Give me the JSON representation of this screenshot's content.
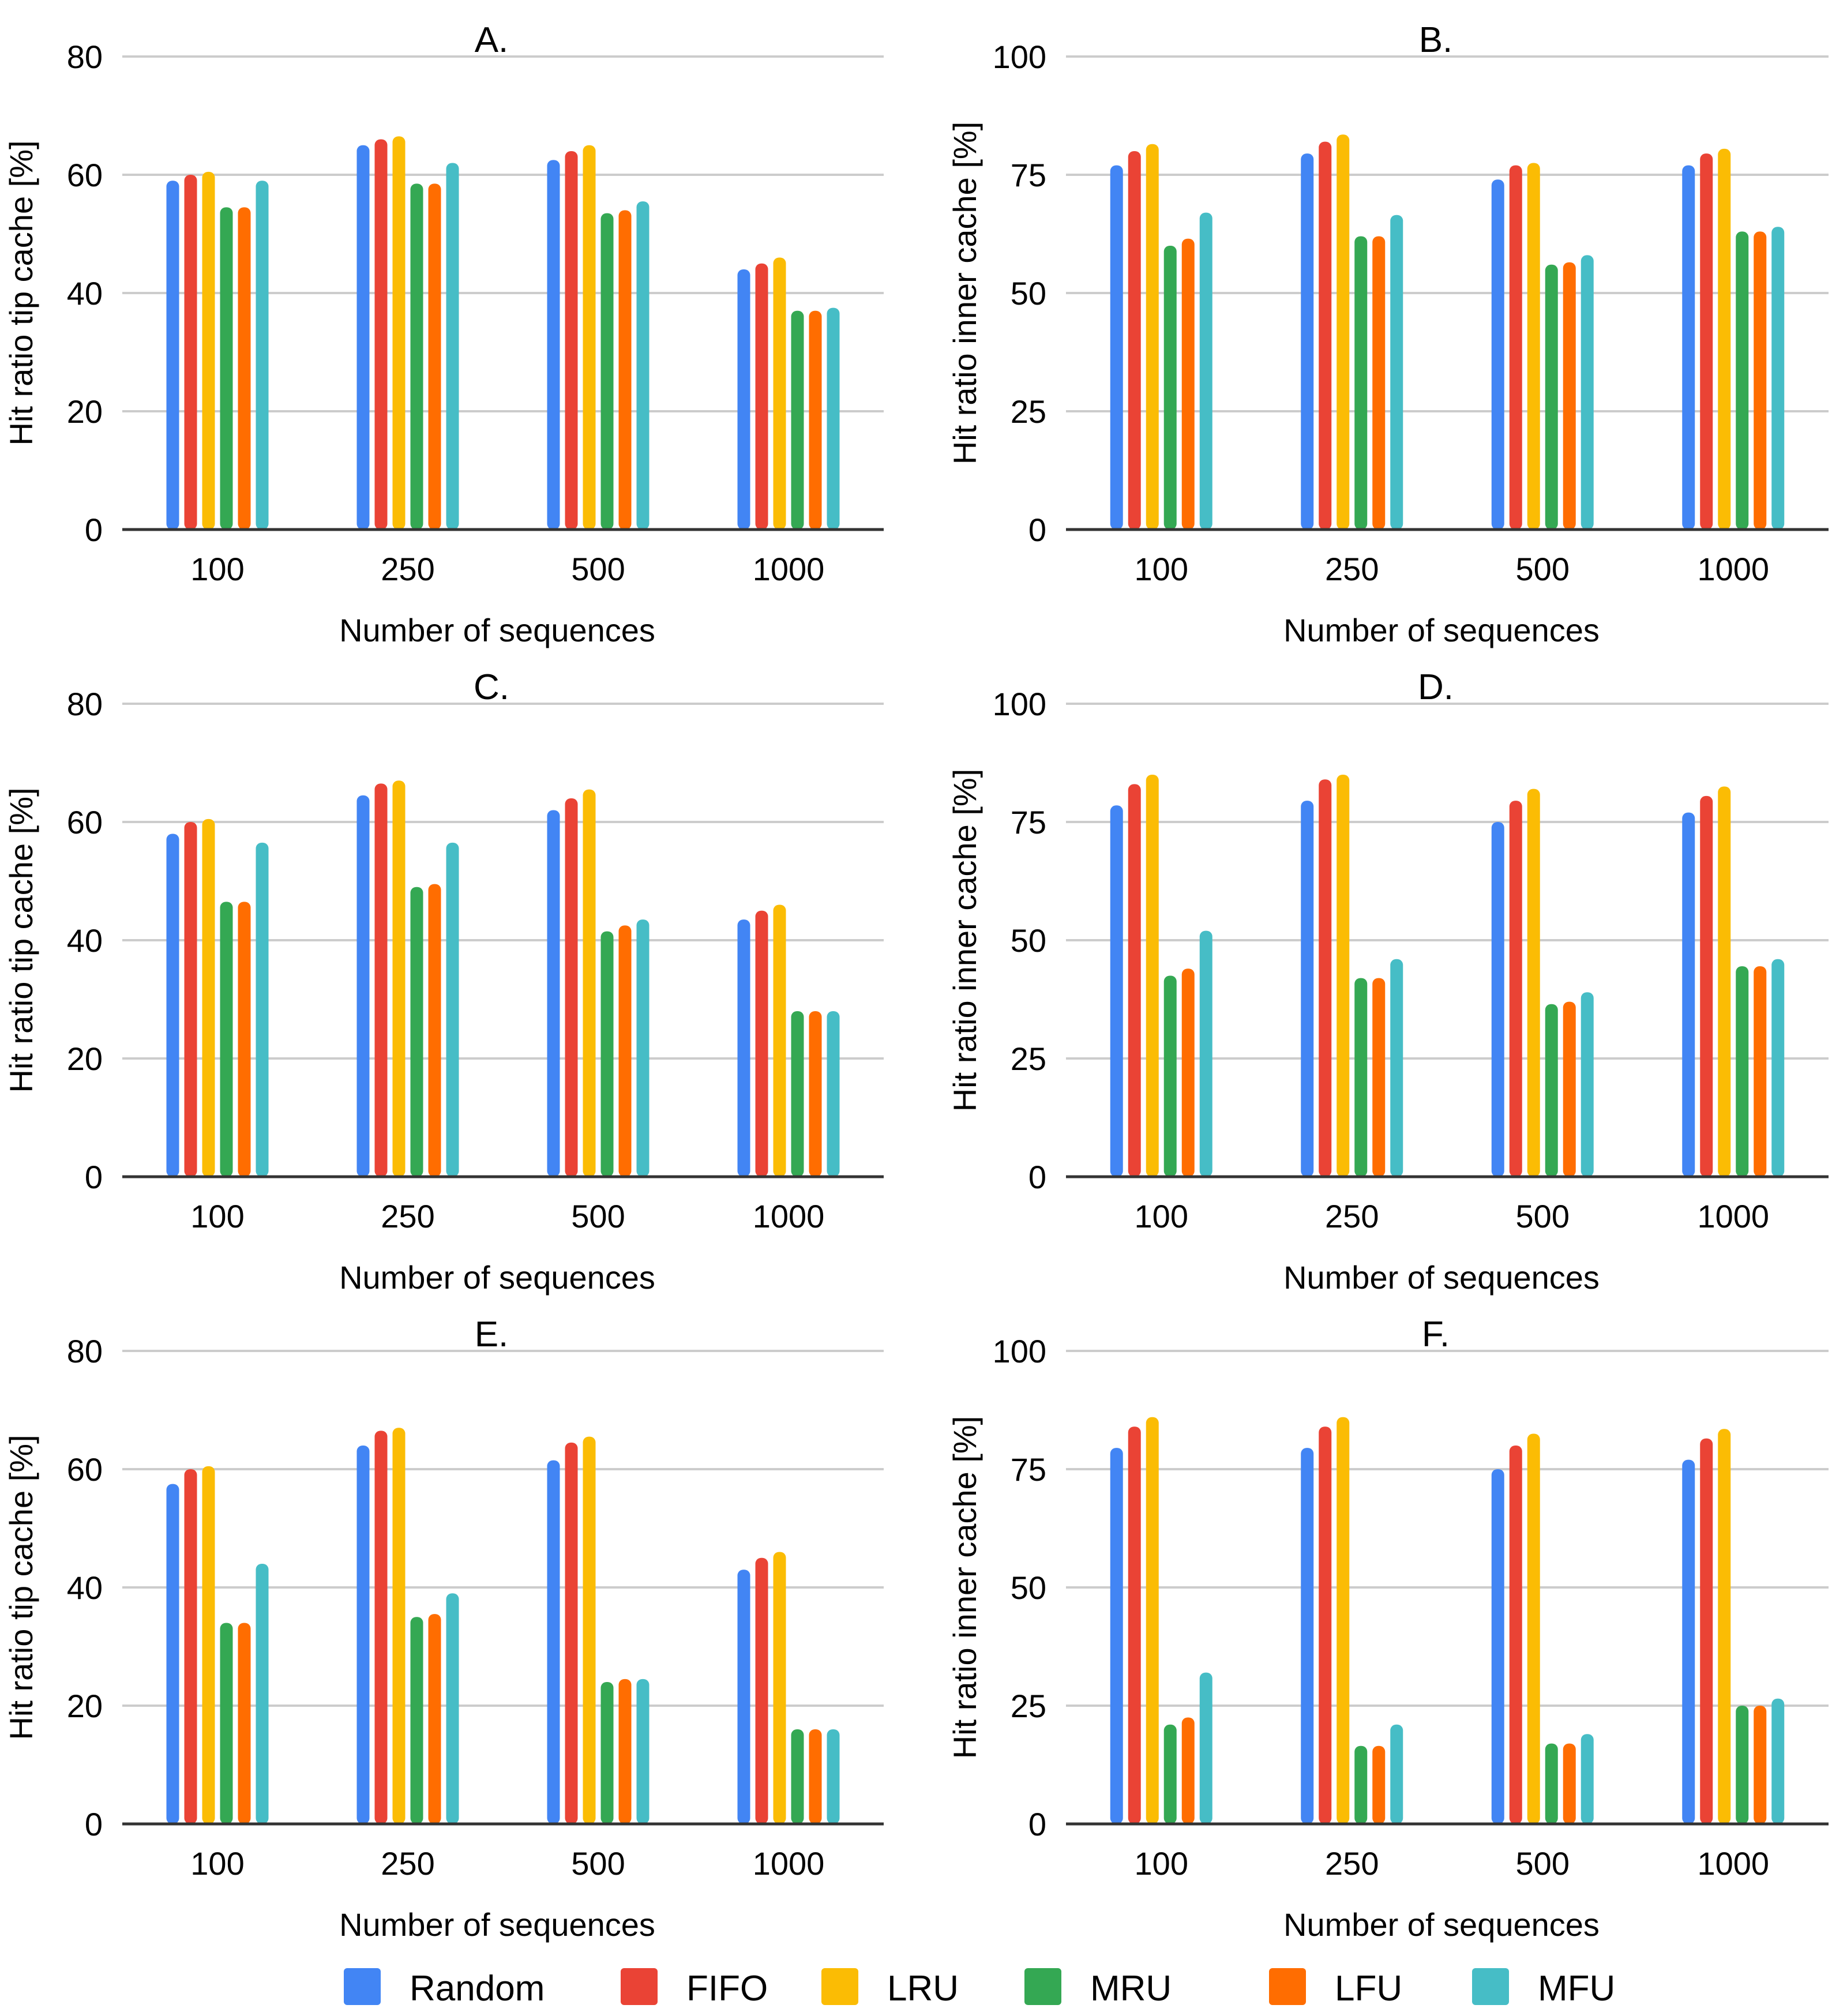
{
  "chart_data": {
    "type": "bar",
    "series_names": [
      "Random",
      "FIFO",
      "LRU",
      "MRU",
      "LFU",
      "MFU"
    ],
    "colors": [
      "#4285F4",
      "#EA4335",
      "#FBBC04",
      "#34A853",
      "#FF6D01",
      "#46BDC6"
    ],
    "panels": [
      {
        "title": "A.",
        "ylabel": "Hit ratio tip cache [%]",
        "xlabel": "Number of sequences",
        "categories": [
          "100",
          "250",
          "500",
          "1000"
        ],
        "ylim": [
          0,
          80
        ],
        "yticks": [
          0,
          20,
          40,
          60,
          80
        ],
        "series": [
          {
            "name": "Random",
            "values": [
              59,
              65,
              62.5,
              44
            ]
          },
          {
            "name": "FIFO",
            "values": [
              60,
              66,
              64,
              45
            ]
          },
          {
            "name": "LRU",
            "values": [
              60.5,
              66.5,
              65,
              46
            ]
          },
          {
            "name": "MRU",
            "values": [
              54.5,
              58.5,
              53.5,
              37
            ]
          },
          {
            "name": "LFU",
            "values": [
              54.5,
              58.5,
              54,
              37
            ]
          },
          {
            "name": "MFU",
            "values": [
              59,
              62,
              55.5,
              37.5
            ]
          }
        ]
      },
      {
        "title": "B.",
        "ylabel": "Hit ratio inner cache [%]",
        "xlabel": "Number of sequences",
        "categories": [
          "100",
          "250",
          "500",
          "1000"
        ],
        "ylim": [
          0,
          100
        ],
        "yticks": [
          0,
          25,
          50,
          75,
          100
        ],
        "series": [
          {
            "name": "Random",
            "values": [
              77,
              79.5,
              74,
              77
            ]
          },
          {
            "name": "FIFO",
            "values": [
              80,
              82,
              77,
              79.5
            ]
          },
          {
            "name": "LRU",
            "values": [
              81.5,
              83.5,
              77.5,
              80.5
            ]
          },
          {
            "name": "MRU",
            "values": [
              60,
              62,
              56,
              63
            ]
          },
          {
            "name": "LFU",
            "values": [
              61.5,
              62,
              56.5,
              63
            ]
          },
          {
            "name": "MFU",
            "values": [
              67,
              66.5,
              58,
              64
            ]
          }
        ]
      },
      {
        "title": "C.",
        "ylabel": "Hit ratio tip cache [%]",
        "xlabel": "Number of sequences",
        "categories": [
          "100",
          "250",
          "500",
          "1000"
        ],
        "ylim": [
          0,
          80
        ],
        "yticks": [
          0,
          20,
          40,
          60,
          80
        ],
        "series": [
          {
            "name": "Random",
            "values": [
              58,
              64.5,
              62,
              43.5
            ]
          },
          {
            "name": "FIFO",
            "values": [
              60,
              66.5,
              64,
              45
            ]
          },
          {
            "name": "LRU",
            "values": [
              60.5,
              67,
              65.5,
              46
            ]
          },
          {
            "name": "MRU",
            "values": [
              46.5,
              49,
              41.5,
              28
            ]
          },
          {
            "name": "LFU",
            "values": [
              46.5,
              49.5,
              42.5,
              28
            ]
          },
          {
            "name": "MFU",
            "values": [
              56.5,
              56.5,
              43.5,
              28
            ]
          }
        ]
      },
      {
        "title": "D.",
        "ylabel": "Hit ratio inner cache [%]",
        "xlabel": "Number of sequences",
        "categories": [
          "100",
          "250",
          "500",
          "1000"
        ],
        "ylim": [
          0,
          100
        ],
        "yticks": [
          0,
          25,
          50,
          75,
          100
        ],
        "series": [
          {
            "name": "Random",
            "values": [
              78.5,
              79.5,
              75,
              77
            ]
          },
          {
            "name": "FIFO",
            "values": [
              83,
              84,
              79.5,
              80.5
            ]
          },
          {
            "name": "LRU",
            "values": [
              85,
              85,
              82,
              82.5
            ]
          },
          {
            "name": "MRU",
            "values": [
              42.5,
              42,
              36.5,
              44.5
            ]
          },
          {
            "name": "LFU",
            "values": [
              44,
              42,
              37,
              44.5
            ]
          },
          {
            "name": "MFU",
            "values": [
              52,
              46,
              39,
              46
            ]
          }
        ]
      },
      {
        "title": "E.",
        "ylabel": "Hit ratio tip cache [%]",
        "xlabel": "Number of sequences",
        "categories": [
          "100",
          "250",
          "500",
          "1000"
        ],
        "ylim": [
          0,
          80
        ],
        "yticks": [
          0,
          20,
          40,
          60,
          80
        ],
        "series": [
          {
            "name": "Random",
            "values": [
              57.5,
              64,
              61.5,
              43
            ]
          },
          {
            "name": "FIFO",
            "values": [
              60,
              66.5,
              64.5,
              45
            ]
          },
          {
            "name": "LRU",
            "values": [
              60.5,
              67,
              65.5,
              46
            ]
          },
          {
            "name": "MRU",
            "values": [
              34,
              35,
              24,
              16
            ]
          },
          {
            "name": "LFU",
            "values": [
              34,
              35.5,
              24.5,
              16
            ]
          },
          {
            "name": "MFU",
            "values": [
              44,
              39,
              24.5,
              16
            ]
          }
        ]
      },
      {
        "title": "F.",
        "ylabel": "Hit ratio inner cache [%]",
        "xlabel": "Number of sequences",
        "categories": [
          "100",
          "250",
          "500",
          "1000"
        ],
        "ylim": [
          0,
          100
        ],
        "yticks": [
          0,
          25,
          50,
          75,
          100
        ],
        "series": [
          {
            "name": "Random",
            "values": [
              79.5,
              79.5,
              75,
              77
            ]
          },
          {
            "name": "FIFO",
            "values": [
              84,
              84,
              80,
              81.5
            ]
          },
          {
            "name": "LRU",
            "values": [
              86,
              86,
              82.5,
              83.5
            ]
          },
          {
            "name": "MRU",
            "values": [
              21,
              16.5,
              17,
              25
            ]
          },
          {
            "name": "LFU",
            "values": [
              22.5,
              16.5,
              17,
              25
            ]
          },
          {
            "name": "MFU",
            "values": [
              32,
              21,
              19,
              26.5
            ]
          }
        ]
      }
    ]
  }
}
